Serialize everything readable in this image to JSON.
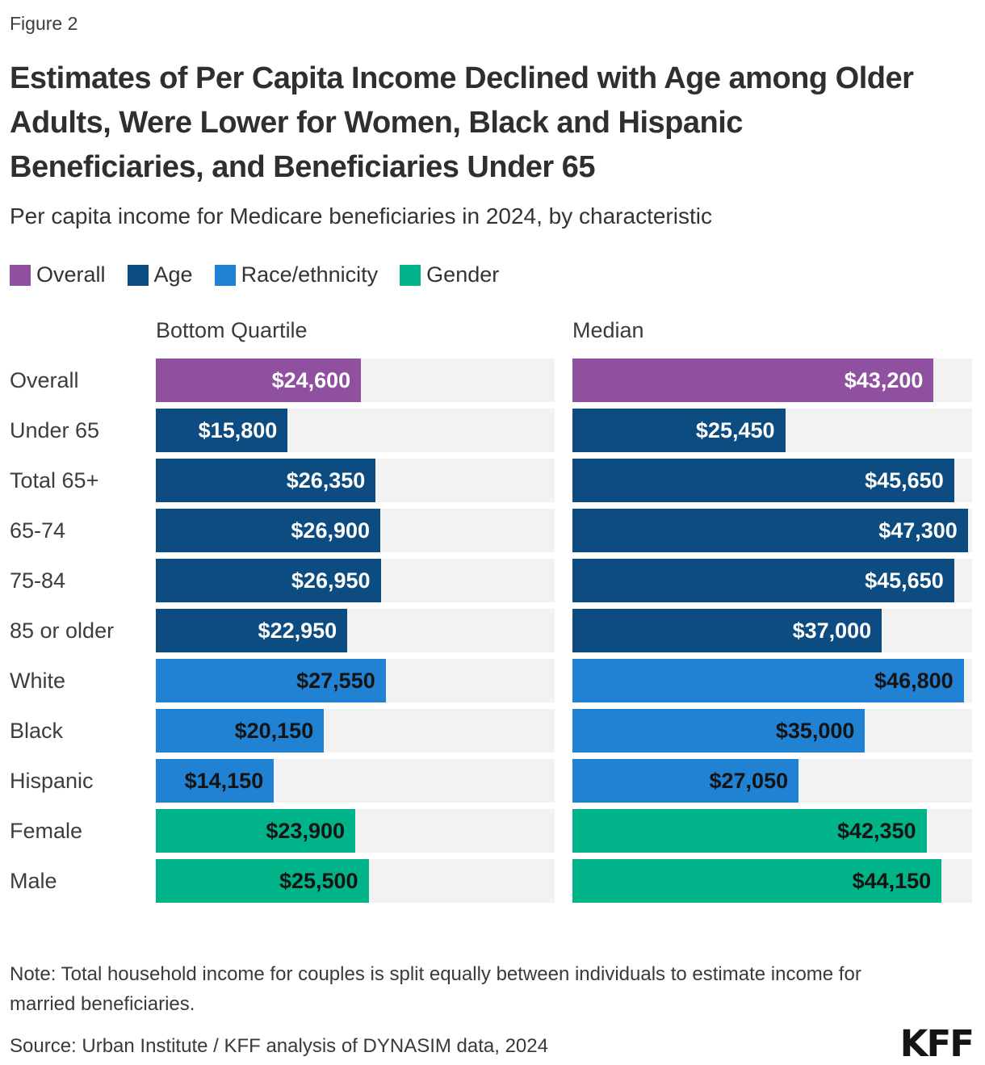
{
  "figure_label": "Figure 2",
  "title": "Estimates of Per Capita Income Declined with Age among Older Adults, Were Lower for Women, Black and Hispanic Beneficiaries, and Beneficiaries Under 65",
  "subtitle": "Per capita income for Medicare beneficiaries in 2024, by characteristic",
  "legend": [
    {
      "label": "Overall",
      "group": "overall"
    },
    {
      "label": "Age",
      "group": "age"
    },
    {
      "label": "Race/ethnicity",
      "group": "race"
    },
    {
      "label": "Gender",
      "group": "gender"
    }
  ],
  "groups": {
    "overall": {
      "color": "#8f519f",
      "text_color": "#ffffff"
    },
    "age": {
      "color": "#0c4c80",
      "text_color": "#ffffff"
    },
    "race": {
      "color": "#2181d3",
      "text_color": "#141414"
    },
    "gender": {
      "color": "#00b388",
      "text_color": "#141414"
    }
  },
  "columns": [
    {
      "label": "Bottom Quartile"
    },
    {
      "label": "Median"
    }
  ],
  "chart_data": {
    "type": "bar",
    "orientation": "horizontal",
    "title": "Estimates of Per Capita Income Declined with Age among Older Adults, Were Lower for Women, Black and Hispanic Beneficiaries, and Beneficiaries Under 65",
    "subtitle": "Per capita income for Medicare beneficiaries in 2024, by characteristic",
    "categories": [
      "Overall",
      "Under 65",
      "Total 65+",
      "65-74",
      "75-84",
      "85 or older",
      "White",
      "Black",
      "Hispanic",
      "Female",
      "Male"
    ],
    "category_groups": [
      "overall",
      "age",
      "age",
      "age",
      "age",
      "age",
      "race",
      "race",
      "race",
      "gender",
      "gender"
    ],
    "series": [
      {
        "name": "Bottom Quartile",
        "values": [
          24600,
          15800,
          26350,
          26900,
          26950,
          22950,
          27550,
          20150,
          14150,
          23900,
          25500
        ]
      },
      {
        "name": "Median",
        "values": [
          43200,
          25450,
          45650,
          47300,
          45650,
          37000,
          46800,
          35000,
          27050,
          42350,
          44150
        ]
      }
    ],
    "xlim": [
      0,
      47800
    ],
    "grid": false,
    "legend_position": "top",
    "track_color": "#f2f2f2",
    "value_label_format": "$#,###"
  },
  "rows": [
    {
      "label": "Overall",
      "group": "overall",
      "bottom_quartile": 24600,
      "bottom_quartile_label": "$24,600",
      "median": 43200,
      "median_label": "$43,200"
    },
    {
      "label": "Under 65",
      "group": "age",
      "bottom_quartile": 15800,
      "bottom_quartile_label": "$15,800",
      "median": 25450,
      "median_label": "$25,450"
    },
    {
      "label": "Total 65+",
      "group": "age",
      "bottom_quartile": 26350,
      "bottom_quartile_label": "$26,350",
      "median": 45650,
      "median_label": "$45,650"
    },
    {
      "label": "65-74",
      "group": "age",
      "bottom_quartile": 26900,
      "bottom_quartile_label": "$26,900",
      "median": 47300,
      "median_label": "$47,300"
    },
    {
      "label": "75-84",
      "group": "age",
      "bottom_quartile": 26950,
      "bottom_quartile_label": "$26,950",
      "median": 45650,
      "median_label": "$45,650"
    },
    {
      "label": "85 or older",
      "group": "age",
      "bottom_quartile": 22950,
      "bottom_quartile_label": "$22,950",
      "median": 37000,
      "median_label": "$37,000"
    },
    {
      "label": "White",
      "group": "race",
      "bottom_quartile": 27550,
      "bottom_quartile_label": "$27,550",
      "median": 46800,
      "median_label": "$46,800"
    },
    {
      "label": "Black",
      "group": "race",
      "bottom_quartile": 20150,
      "bottom_quartile_label": "$20,150",
      "median": 35000,
      "median_label": "$35,000"
    },
    {
      "label": "Hispanic",
      "group": "race",
      "bottom_quartile": 14150,
      "bottom_quartile_label": "$14,150",
      "median": 27050,
      "median_label": "$27,050"
    },
    {
      "label": "Female",
      "group": "gender",
      "bottom_quartile": 23900,
      "bottom_quartile_label": "$23,900",
      "median": 42350,
      "median_label": "$42,350"
    },
    {
      "label": "Male",
      "group": "gender",
      "bottom_quartile": 25500,
      "bottom_quartile_label": "$25,500",
      "median": 44150,
      "median_label": "$44,150"
    }
  ],
  "note": "Note: Total household income for couples is split equally between individuals to estimate income for married beneficiaries.",
  "source": "Source: Urban Institute / KFF analysis of DYNASIM data, 2024",
  "logo": "KFF"
}
